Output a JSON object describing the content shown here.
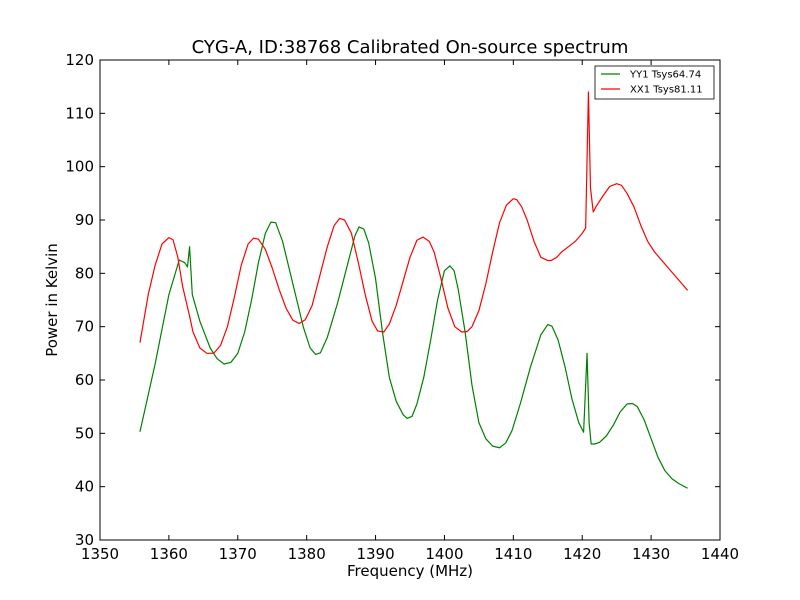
{
  "chart_data": {
    "type": "line",
    "title": "CYG-A, ID:38768 Calibrated On-source spectrum",
    "xlabel": "Frequency (MHz)",
    "ylabel": "Power in Kelvin",
    "xlim": [
      1350,
      1440
    ],
    "ylim": [
      30,
      120
    ],
    "xticks": [
      1350,
      1360,
      1370,
      1380,
      1390,
      1400,
      1410,
      1420,
      1430,
      1440
    ],
    "yticks": [
      30,
      40,
      50,
      60,
      70,
      80,
      90,
      100,
      110,
      120
    ],
    "grid": false,
    "legend_position": "top-right",
    "series": [
      {
        "name": "YY1 Tsys64.74",
        "color": "#008000",
        "x": [
          1355.8,
          1358,
          1360,
          1361.5,
          1362.3,
          1362.7,
          1363.0,
          1363.4,
          1364.5,
          1366,
          1367,
          1368,
          1369,
          1370,
          1371,
          1372,
          1373,
          1374,
          1374.8,
          1375.5,
          1376.5,
          1378,
          1379.5,
          1380.5,
          1381.3,
          1382,
          1383,
          1384.5,
          1386,
          1387,
          1387.6,
          1388.3,
          1389,
          1390,
          1391,
          1392,
          1393,
          1394,
          1394.6,
          1395.3,
          1396,
          1397,
          1398,
          1399,
          1400,
          1400.8,
          1401.4,
          1402,
          1403,
          1404,
          1405,
          1406,
          1407,
          1408,
          1408.9,
          1409.8,
          1411,
          1412.5,
          1414,
          1415,
          1415.6,
          1416.5,
          1417.5,
          1418.5,
          1419.5,
          1420.2,
          1420.7,
          1421.0,
          1421.3,
          1421.8,
          1422.5,
          1423.5,
          1424.5,
          1425.5,
          1426.5,
          1427.3,
          1428,
          1429,
          1430,
          1431,
          1432,
          1433,
          1434,
          1435.3
        ],
        "y": [
          50.3,
          63,
          76,
          82.5,
          82,
          81.2,
          85,
          76,
          71,
          66,
          64,
          63,
          63.3,
          65,
          69,
          75,
          82,
          87.5,
          89.6,
          89.5,
          86,
          78,
          70,
          66,
          64.8,
          65.1,
          68,
          74.5,
          82,
          87,
          88.7,
          88.3,
          85.7,
          79,
          69,
          60.5,
          56,
          53.5,
          52.8,
          53.2,
          55.5,
          60.5,
          67.5,
          75,
          80.5,
          81.4,
          80.5,
          77,
          69,
          59,
          52,
          49,
          47.6,
          47.3,
          48.2,
          50.5,
          55.5,
          62.5,
          68.5,
          70.4,
          70.1,
          67.5,
          62.5,
          56.5,
          52,
          50.2,
          65,
          52,
          48,
          48,
          48.3,
          49.5,
          51.5,
          54,
          55.5,
          55.6,
          55,
          52.5,
          49,
          45.5,
          43,
          41.5,
          40.6,
          39.7
        ]
      },
      {
        "name": "XX1 Tsys81.11",
        "color": "#ff0000",
        "x": [
          1355.8,
          1357,
          1358,
          1359,
          1360,
          1360.6,
          1361.3,
          1362,
          1363,
          1363.5,
          1364.5,
          1365.5,
          1366.5,
          1367.5,
          1368.5,
          1369.5,
          1370.5,
          1371.5,
          1372.3,
          1373,
          1374,
          1375,
          1376,
          1377,
          1378,
          1378.9,
          1379.8,
          1380.8,
          1382,
          1383,
          1384,
          1384.8,
          1385.5,
          1386.5,
          1387.5,
          1388.5,
          1389.5,
          1390.3,
          1391.2,
          1392,
          1393,
          1394,
          1395,
          1396,
          1396.9,
          1397.8,
          1398.5,
          1399.5,
          1400.5,
          1401.5,
          1402.5,
          1403.3,
          1404,
          1405,
          1406,
          1407,
          1408,
          1409,
          1410,
          1410.5,
          1411.2,
          1412,
          1413,
          1414,
          1415,
          1415.5,
          1416.3,
          1417,
          1418,
          1419,
          1420,
          1420.5,
          1420.9,
          1421.2,
          1421.6,
          1422,
          1423,
          1424,
          1425,
          1425.7,
          1426.5,
          1427.5,
          1428.5,
          1429.5,
          1430.5,
          1431.5,
          1432.5,
          1433.5,
          1434.5,
          1435.3
        ],
        "y": [
          67,
          76,
          81.5,
          85.5,
          86.7,
          86.3,
          83,
          77.5,
          72,
          69,
          66,
          65,
          65,
          66.5,
          70,
          75.5,
          81.5,
          85.5,
          86.6,
          86.4,
          84.5,
          81,
          77,
          73.5,
          71.2,
          70.6,
          71.3,
          74,
          80,
          85,
          89,
          90.3,
          90,
          87.5,
          82,
          76,
          71,
          69.2,
          69,
          70.5,
          74,
          78.5,
          83,
          86.2,
          86.8,
          86,
          84,
          79,
          73.5,
          70,
          69,
          69.1,
          70,
          73,
          78,
          84,
          89.5,
          92.8,
          94,
          93.8,
          92.5,
          90,
          86,
          83,
          82.4,
          82.4,
          83,
          84,
          85,
          86,
          87.5,
          88.5,
          114,
          96,
          91.5,
          92.5,
          94.5,
          96.3,
          96.8,
          96.5,
          95,
          92.5,
          89,
          86,
          84,
          82.5,
          81,
          79.5,
          78,
          76.8
        ]
      }
    ]
  }
}
